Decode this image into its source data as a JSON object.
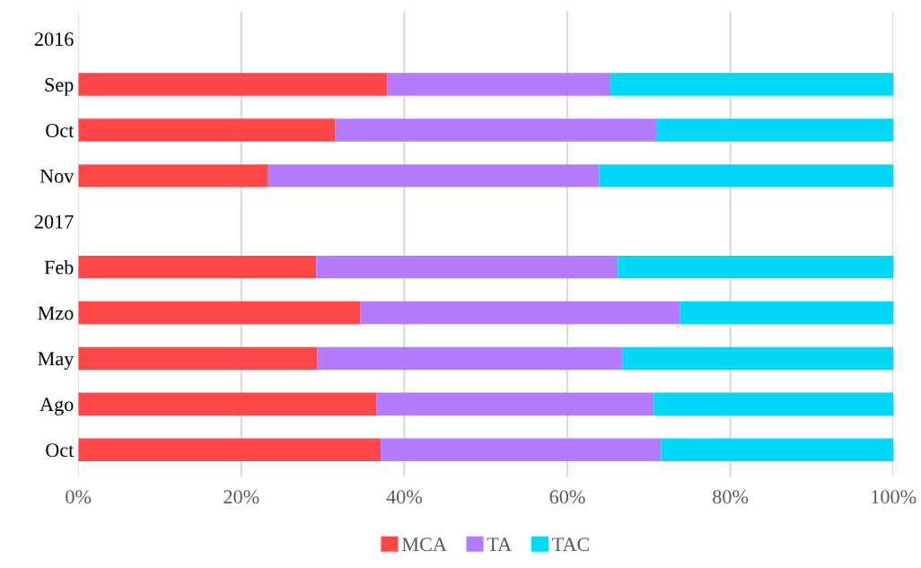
{
  "chart_data": {
    "type": "bar",
    "orientation": "horizontal",
    "stacked": true,
    "categories": [
      "2016",
      "Sep",
      "Oct",
      "Nov",
      "2017",
      "Feb",
      "Mzo",
      "May",
      "Ago",
      "Oct"
    ],
    "series": [
      {
        "name": "MCA",
        "color": "#ff4747",
        "values": [
          null,
          37.9,
          31.5,
          23.3,
          null,
          29.2,
          34.6,
          29.3,
          36.6,
          37.1
        ]
      },
      {
        "name": "TA",
        "color": "#b57bff",
        "values": [
          null,
          27.4,
          39.5,
          40.6,
          null,
          37.0,
          39.2,
          37.5,
          34.0,
          34.4
        ]
      },
      {
        "name": "TAC",
        "color": "#00d8f8",
        "values": [
          null,
          34.7,
          29.0,
          36.1,
          null,
          33.8,
          26.2,
          33.2,
          29.4,
          28.5
        ]
      }
    ],
    "xlim": [
      0,
      100
    ],
    "xticks": [
      {
        "value": 0,
        "label": "0%"
      },
      {
        "value": 20,
        "label": "20%"
      },
      {
        "value": 40,
        "label": "40%"
      },
      {
        "value": 60,
        "label": "60%"
      },
      {
        "value": 80,
        "label": "80%"
      },
      {
        "value": 100,
        "label": "100%"
      }
    ],
    "grid": "x",
    "legend": "bottom"
  }
}
